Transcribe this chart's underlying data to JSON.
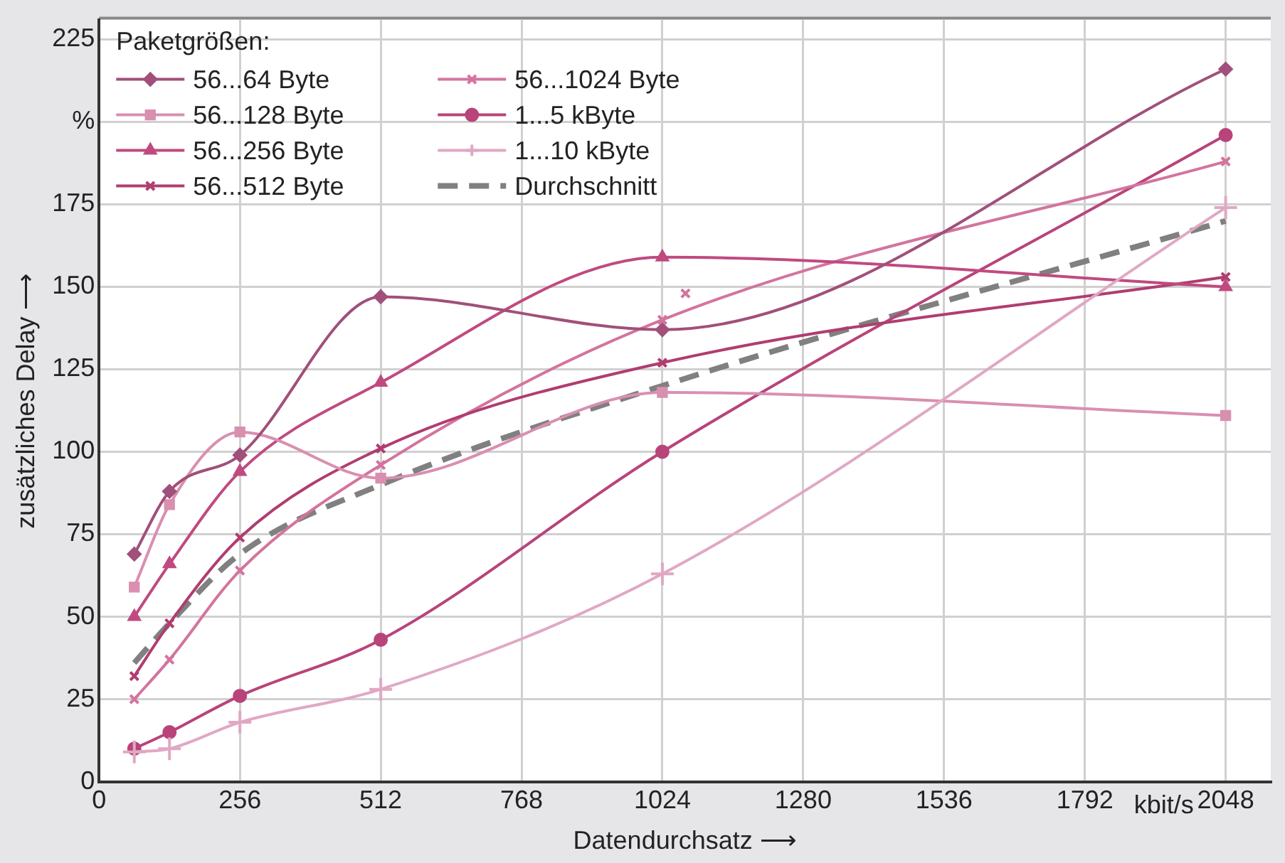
{
  "chart_data": {
    "type": "line",
    "xlabel": "Datendurchsatz ⟶",
    "ylabel": "zusätzliches Delay ⟶",
    "legend_title": "Paketgrößen:",
    "annotations": [
      "kbit/s"
    ],
    "x": [
      64,
      128,
      256,
      512,
      1024,
      2048
    ],
    "series": [
      {
        "name": "56...64 Byte",
        "color": "#a0507a",
        "marker": "diamond",
        "values": [
          69,
          88,
          99,
          147,
          137,
          216
        ]
      },
      {
        "name": "56...128 Byte",
        "color": "#d98fb0",
        "marker": "square",
        "values": [
          59,
          84,
          106,
          92,
          118,
          111
        ]
      },
      {
        "name": "56...256 Byte",
        "color": "#c04a80",
        "marker": "triangle",
        "values": [
          50,
          66,
          94,
          121,
          159,
          150
        ]
      },
      {
        "name": "56...512 Byte",
        "color": "#b03d70",
        "marker": "cross",
        "values": [
          32,
          48,
          74,
          101,
          127,
          153
        ]
      },
      {
        "name": "56...1024 Byte",
        "color": "#d3749e",
        "marker": "cross",
        "values": [
          25,
          37,
          64,
          96,
          140,
          188
        ]
      },
      {
        "name": "1...5 kByte",
        "color": "#b8447a",
        "marker": "circle",
        "values": [
          10,
          15,
          26,
          43,
          100,
          196
        ]
      },
      {
        "name": "1...10 kByte",
        "color": "#e0a8c4",
        "marker": "plus",
        "values": [
          9,
          10,
          18,
          28,
          63,
          174
        ]
      },
      {
        "name": "Durchschnitt",
        "color": "#808080",
        "marker": "none",
        "line_style": "dashed",
        "values": [
          36,
          48,
          69,
          90,
          120,
          170
        ]
      },
      {
        "type": "scatter",
        "color": "#d3749e",
        "marker": "cross",
        "x": [
          1066
        ],
        "values": [
          148
        ]
      }
    ],
    "xlim": [
      0,
      2130
    ],
    "xticks": [
      0,
      256,
      512,
      768,
      1024,
      1280,
      1536,
      1792,
      2048
    ],
    "ylim": [
      0,
      231
    ],
    "yticks": [
      0,
      25,
      50,
      75,
      100,
      125,
      150,
      175,
      {
        "value": 200,
        "label": "%"
      },
      225
    ],
    "grid": true,
    "legend": "top left"
  }
}
